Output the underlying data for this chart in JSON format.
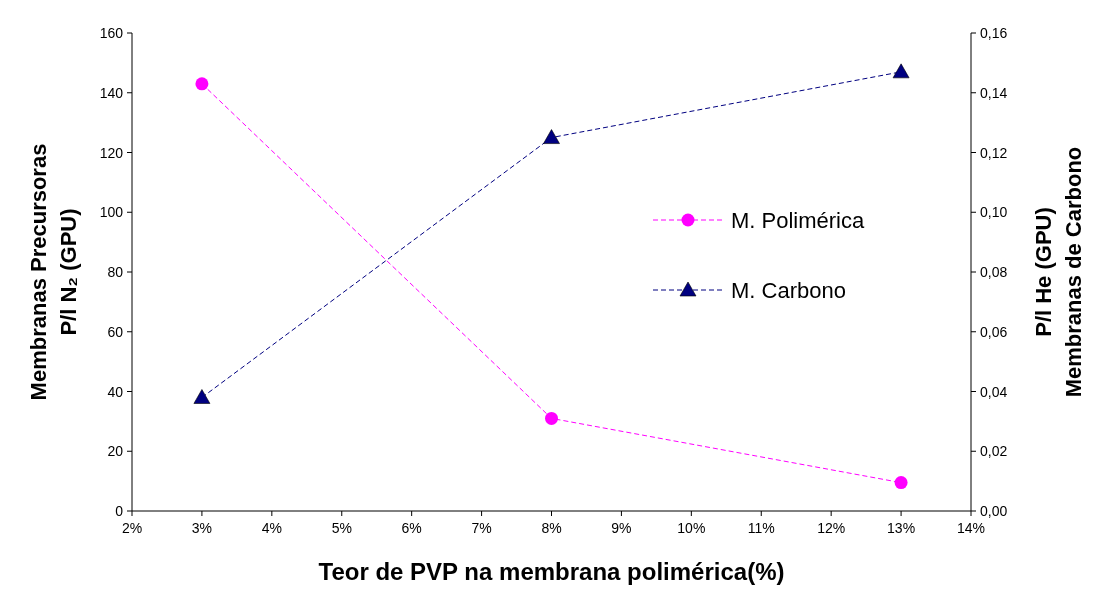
{
  "chart_data": {
    "type": "line",
    "xlabel": "Teor de PVP na membrana polimérica(%)",
    "ylabel": "Membranas Precursoras\nP/l N₂ (GPU)",
    "y2label": "P/l He (GPU)\nMembranas de Carbono",
    "x": [
      3,
      8,
      13
    ],
    "series": [
      {
        "name": "M. Polimérica",
        "color": "#ff00ff",
        "marker": "circle",
        "values": [
          143,
          31,
          9.5
        ]
      },
      {
        "name": "M. Carbono",
        "color": "#000080",
        "marker": "triangle",
        "axis": "y2",
        "values": [
          0.038,
          0.125,
          0.147
        ]
      }
    ],
    "xlim": [
      2,
      14
    ],
    "xticks": [
      {
        "value": 2,
        "label": "2%"
      },
      {
        "value": 3,
        "label": "3%"
      },
      {
        "value": 4,
        "label": "4%"
      },
      {
        "value": 5,
        "label": "5%"
      },
      {
        "value": 6,
        "label": "6%"
      },
      {
        "value": 7,
        "label": "7%"
      },
      {
        "value": 8,
        "label": "8%"
      },
      {
        "value": 9,
        "label": "9%"
      },
      {
        "value": 10,
        "label": "10%"
      },
      {
        "value": 11,
        "label": "11%"
      },
      {
        "value": 12,
        "label": "12%"
      },
      {
        "value": 13,
        "label": "13%"
      },
      {
        "value": 14,
        "label": "14%"
      }
    ],
    "ylim": [
      0,
      160
    ],
    "yticks": [
      0,
      20,
      40,
      60,
      80,
      100,
      120,
      140,
      160
    ],
    "y2lim": [
      0,
      0.16
    ],
    "y2ticks": [
      {
        "value": 0,
        "label": "0,00"
      },
      {
        "value": 0.02,
        "label": "0,02"
      },
      {
        "value": 0.04,
        "label": "0,04"
      },
      {
        "value": 0.06,
        "label": "0,06"
      },
      {
        "value": 0.08,
        "label": "0,08"
      },
      {
        "value": 0.1,
        "label": "0,10"
      },
      {
        "value": 0.12,
        "label": "0,12"
      },
      {
        "value": 0.14,
        "label": "0,14"
      },
      {
        "value": 0.16,
        "label": "0,16"
      }
    ],
    "line_style": "dashed",
    "grid": false,
    "legend": "right"
  }
}
